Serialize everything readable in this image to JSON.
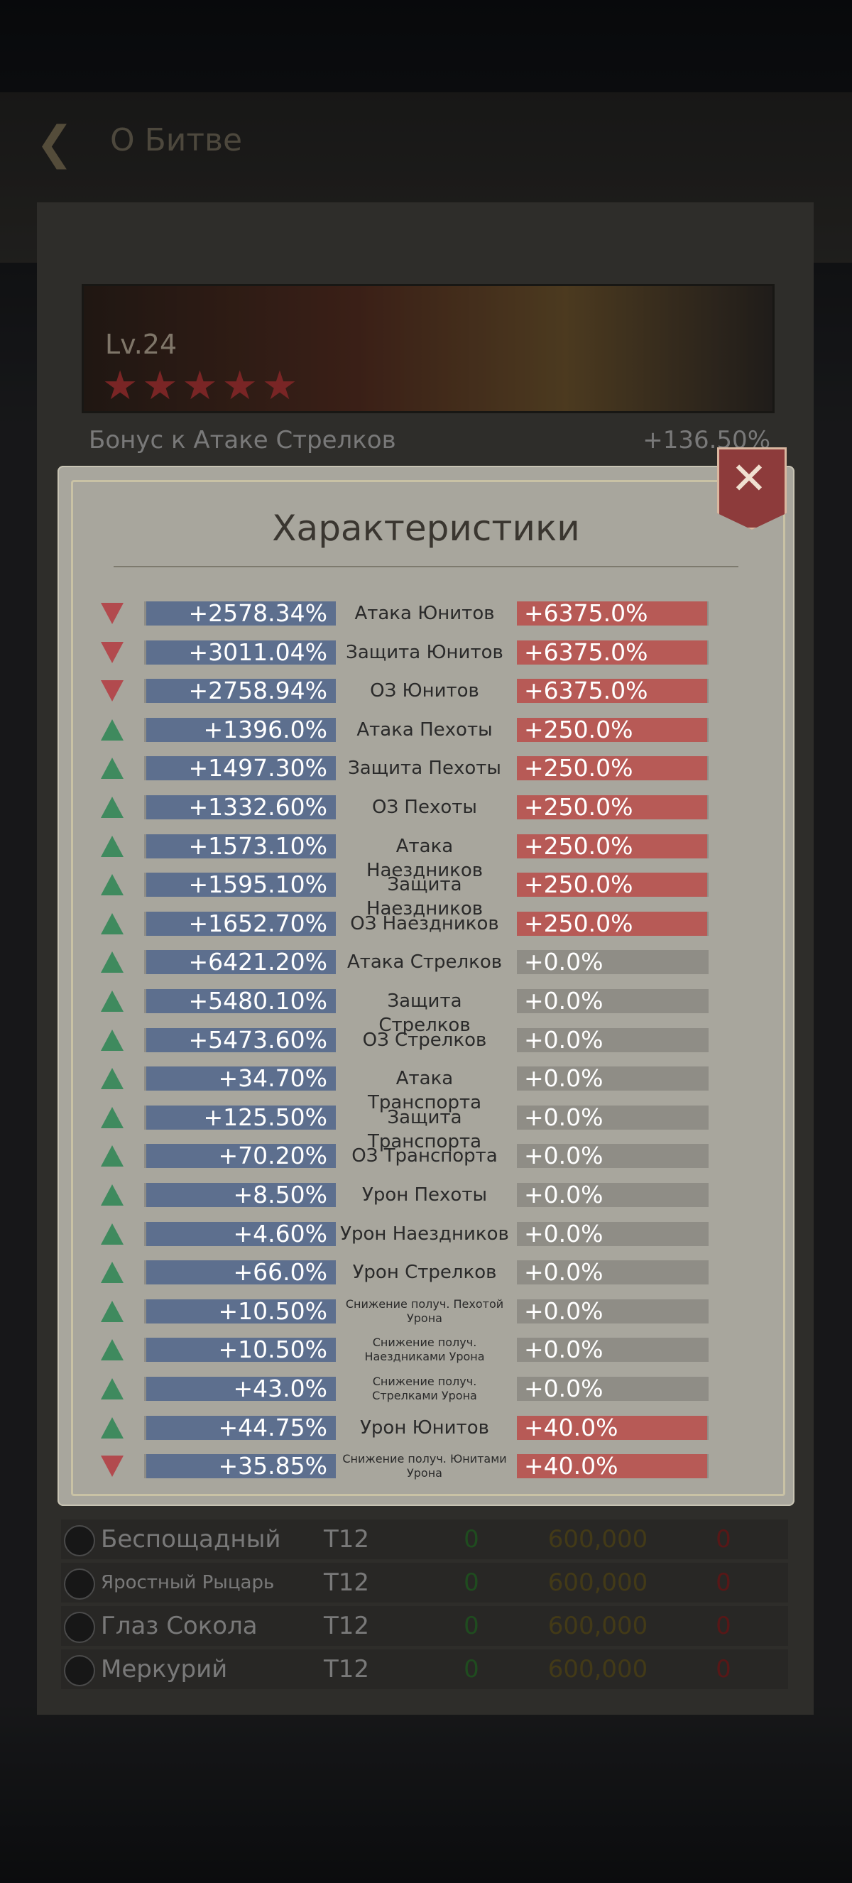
{
  "header": {
    "title": "О Битве"
  },
  "hero": {
    "level": "Lv.24"
  },
  "bonus": {
    "label": "Бонус к Атаке Стрелков",
    "value": "+136.50%"
  },
  "modal": {
    "title": "Характеристики",
    "rows": [
      {
        "trend": "down",
        "left": "+2578.34%",
        "name": "Атака Юнитов",
        "right": "+6375.0%"
      },
      {
        "trend": "down",
        "left": "+3011.04%",
        "name": "Защита Юнитов",
        "right": "+6375.0%"
      },
      {
        "trend": "down",
        "left": "+2758.94%",
        "name": "ОЗ Юнитов",
        "right": "+6375.0%"
      },
      {
        "trend": "up",
        "left": "+1396.0%",
        "name": "Атака Пехоты",
        "right": "+250.0%"
      },
      {
        "trend": "up",
        "left": "+1497.30%",
        "name": "Защита Пехоты",
        "right": "+250.0%"
      },
      {
        "trend": "up",
        "left": "+1332.60%",
        "name": "ОЗ Пехоты",
        "right": "+250.0%"
      },
      {
        "trend": "up",
        "left": "+1573.10%",
        "name": "Атака Наездников",
        "right": "+250.0%"
      },
      {
        "trend": "up",
        "left": "+1595.10%",
        "name": "Защита Наездников",
        "right": "+250.0%"
      },
      {
        "trend": "up",
        "left": "+1652.70%",
        "name": "ОЗ Наездников",
        "right": "+250.0%"
      },
      {
        "trend": "up",
        "left": "+6421.20%",
        "name": "Атака Стрелков",
        "right": "+0.0%"
      },
      {
        "trend": "up",
        "left": "+5480.10%",
        "name": "Защита Стрелков",
        "right": "+0.0%"
      },
      {
        "trend": "up",
        "left": "+5473.60%",
        "name": "ОЗ Стрелков",
        "right": "+0.0%"
      },
      {
        "trend": "up",
        "left": "+34.70%",
        "name": "Атака Транспорта",
        "right": "+0.0%"
      },
      {
        "trend": "up",
        "left": "+125.50%",
        "name": "Защита Транспорта",
        "right": "+0.0%"
      },
      {
        "trend": "up",
        "left": "+70.20%",
        "name": "ОЗ Транспорта",
        "right": "+0.0%"
      },
      {
        "trend": "up",
        "left": "+8.50%",
        "name": "Урон Пехоты",
        "right": "+0.0%"
      },
      {
        "trend": "up",
        "left": "+4.60%",
        "name": "Урон Наездников",
        "right": "+0.0%"
      },
      {
        "trend": "up",
        "left": "+66.0%",
        "name": "Урон Стрелков",
        "right": "+0.0%"
      },
      {
        "trend": "up",
        "left": "+10.50%",
        "name": "Снижение получ. Пехотой Урона",
        "right": "+0.0%"
      },
      {
        "trend": "up",
        "left": "+10.50%",
        "name": "Снижение получ. Наездниками Урона",
        "right": "+0.0%"
      },
      {
        "trend": "up",
        "left": "+43.0%",
        "name": "Снижение получ. Стрелками Урона",
        "right": "+0.0%"
      },
      {
        "trend": "up",
        "left": "+44.75%",
        "name": "Урон Юнитов",
        "right": "+40.0%"
      },
      {
        "trend": "down",
        "left": "+35.85%",
        "name": "Снижение получ. Юнитами Урона",
        "right": "+40.0%"
      }
    ]
  },
  "table": {
    "rows": [
      [
        "Беспощадный",
        "T12",
        "0",
        "600,000",
        "0"
      ],
      [
        "Яростный Рыцарь",
        "T12",
        "0",
        "600,000",
        "0"
      ],
      [
        "Глаз Сокола",
        "T12",
        "0",
        "600,000",
        "0"
      ],
      [
        "Меркурий",
        "T12",
        "0",
        "600,000",
        "0"
      ]
    ]
  }
}
